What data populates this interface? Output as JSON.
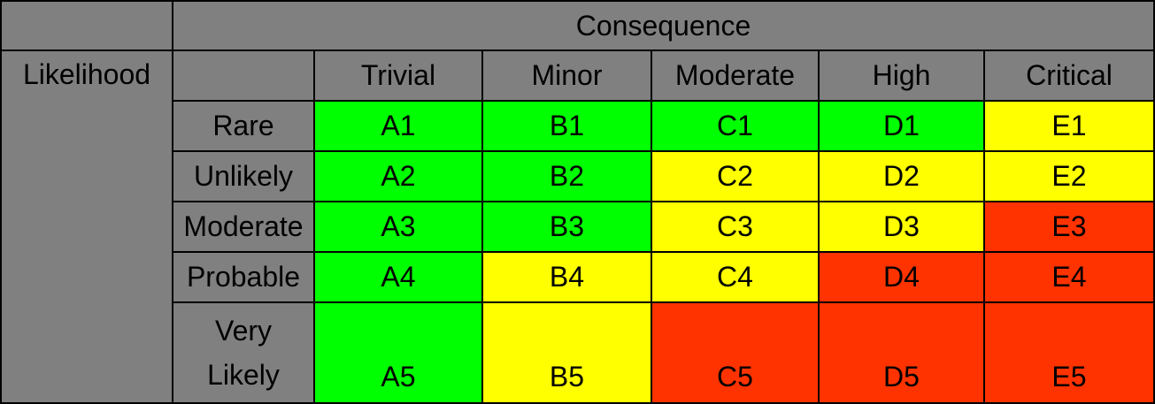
{
  "header": {
    "consequence_label": "Consequence",
    "likelihood_label": "Likelihood",
    "consequence_levels": [
      "Trivial",
      "Minor",
      "Moderate",
      "High",
      "Critical"
    ]
  },
  "likelihood_levels": [
    "Rare",
    "Unlikely",
    "Moderate",
    "Probable",
    "Very Likely"
  ],
  "matrix": [
    [
      "A1",
      "B1",
      "C1",
      "D1",
      "E1"
    ],
    [
      "A2",
      "B2",
      "C2",
      "D2",
      "E2"
    ],
    [
      "A3",
      "B3",
      "C3",
      "D3",
      "E3"
    ],
    [
      "A4",
      "B4",
      "C4",
      "D4",
      "E4"
    ],
    [
      "A5",
      "B5",
      "C5",
      "D5",
      "E5"
    ]
  ],
  "colors": {
    "header_gray": "#808080",
    "low_green": "#00ff00",
    "medium_yellow": "#ffff00",
    "high_red": "#ff3300"
  }
}
